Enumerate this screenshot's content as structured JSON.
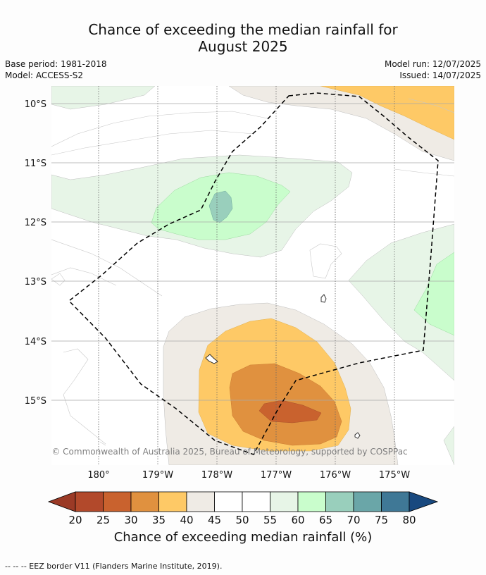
{
  "title": {
    "line1": "Chance of exceeding the median rainfall for",
    "line2": "August 2025"
  },
  "meta": {
    "base_period": "Base period: 1981-2018",
    "model": "Model: ACCESS-S2",
    "model_run": "Model run: 12/07/2025",
    "issued": "Issued: 14/07/2025"
  },
  "map": {
    "lat_labels": [
      "10°S",
      "11°S",
      "12°S",
      "13°S",
      "14°S",
      "15°S"
    ],
    "lon_labels": [
      "180°",
      "179°W",
      "178°W",
      "177°W",
      "176°W",
      "175°W"
    ],
    "copyright": "© Commonwealth of Australia 2025, Bureau of Meteorology, supported by COSPPac",
    "region_colors": {
      "orange_light": "#fec966",
      "orange_mid": "#e0913f",
      "orange_dark": "#c9622e",
      "beige": "#efebe5",
      "green_pale": "#e7f5e7",
      "green_light": "#c9fdcc",
      "teal": "#99cfbc"
    }
  },
  "colorbar": {
    "ticks": [
      "20",
      "25",
      "30",
      "35",
      "40",
      "45",
      "50",
      "55",
      "60",
      "65",
      "70",
      "75",
      "80"
    ],
    "colors": [
      "#b2492b",
      "#c9622e",
      "#e0913f",
      "#fec966",
      "#efebe5",
      "#ffffff",
      "#ffffff",
      "#e7f5e7",
      "#c9fdcc",
      "#99cfbc",
      "#6aa6a8",
      "#3f7896"
    ],
    "low_extend_color": "#9b3a26",
    "high_extend_color": "#19497f",
    "label": "Chance of exceeding median rainfall (%)"
  },
  "footnote": "--  --  -- EEZ border V11 (Flanders Marine Institute, 2019)."
}
